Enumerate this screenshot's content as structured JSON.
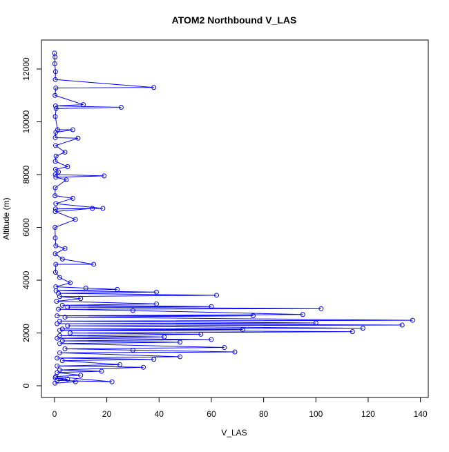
{
  "chart_data": {
    "type": "line",
    "title": "ATOM2 Northbound V_LAS",
    "x_label": "V_LAS",
    "y_label": "Altitude (m)",
    "x": [
      0,
      0.2,
      0.1,
      0.4,
      0.3,
      38,
      0.5,
      0.2,
      11,
      0.4,
      25.5,
      0.6,
      0.3,
      1.2,
      7,
      0.5,
      0.3,
      9,
      0.4,
      4,
      0.6,
      0.3,
      5,
      0.4,
      1.5,
      0.3,
      19,
      0.5,
      4.5,
      0.3,
      0.2,
      7,
      0.5,
      18.5,
      0.4,
      14.5,
      0.3,
      8,
      0.2,
      0.3,
      0.5,
      4,
      0.3,
      3,
      15,
      0.5,
      0.4,
      2,
      6,
      0.5,
      12,
      24,
      0.6,
      39,
      1.5,
      62,
      2,
      10,
      0.8,
      39,
      3,
      60,
      5,
      102,
      1.5,
      30,
      95,
      1,
      76,
      4,
      137,
      2,
      100,
      1,
      133,
      5,
      118,
      3,
      72,
      2,
      114,
      6,
      56,
      2,
      42,
      1,
      60,
      3,
      48,
      2,
      65,
      4,
      30,
      69,
      2,
      48,
      1,
      38,
      3,
      25,
      1,
      34,
      2,
      18,
      1,
      10,
      0.5,
      22,
      1,
      5,
      0.3,
      8,
      0.2
    ],
    "series": [
      {
        "color": "#0000ff",
        "values": [
          12600,
          12450,
          12200,
          11900,
          11600,
          11300,
          11280,
          11000,
          10650,
          10600,
          10550,
          10500,
          10200,
          9700,
          9700,
          9600,
          9400,
          9380,
          9100,
          8850,
          8700,
          8500,
          8300,
          8200,
          8100,
          8000,
          7950,
          7900,
          7800,
          7500,
          7200,
          7100,
          6900,
          6720,
          6700,
          6720,
          6600,
          6300,
          6000,
          5600,
          5300,
          5200,
          5000,
          4800,
          4600,
          4600,
          4300,
          4100,
          3900,
          3750,
          3700,
          3650,
          3600,
          3550,
          3500,
          3430,
          3380,
          3300,
          3200,
          3100,
          3050,
          3000,
          2980,
          2920,
          2900,
          2850,
          2700,
          2650,
          2650,
          2600,
          2480,
          2450,
          2380,
          2350,
          2300,
          2270,
          2180,
          2150,
          2130,
          2100,
          2050,
          2000,
          1950,
          1900,
          1850,
          1800,
          1750,
          1700,
          1650,
          1600,
          1450,
          1400,
          1350,
          1280,
          1250,
          1100,
          1050,
          1000,
          950,
          800,
          750,
          700,
          600,
          550,
          500,
          400,
          350,
          150,
          200,
          250,
          300,
          150,
          100
        ]
      }
    ],
    "xlim": [
      -5,
      143
    ],
    "ylim": [
      -444,
      13098
    ],
    "xticks": [
      0,
      20,
      40,
      60,
      80,
      100,
      120,
      140
    ],
    "yticks": [
      0,
      2000,
      4000,
      6000,
      8000,
      10000,
      12000
    ]
  }
}
